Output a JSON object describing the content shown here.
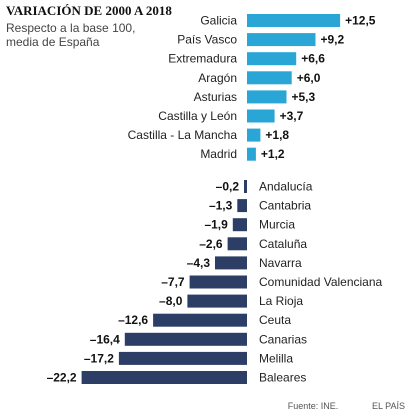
{
  "chart_data": {
    "type": "bar",
    "orientation": "horizontal",
    "title": "VARIACIÓN DE 2000 A 2018",
    "subtitle_lines": [
      "Respecto a la base 100,",
      "media de España"
    ],
    "categories": [
      "Galicia",
      "País Vasco",
      "Extremadura",
      "Aragón",
      "Asturias",
      "Castilla y León",
      "Castilla - La Mancha",
      "Madrid",
      "Andalucía",
      "Cantabria",
      "Murcia",
      "Cataluña",
      "Navarra",
      "Comunidad Valenciana",
      "La Rioja",
      "Ceuta",
      "Canarias",
      "Melilla",
      "Baleares"
    ],
    "values": [
      12.5,
      9.2,
      6.6,
      6.0,
      5.3,
      3.7,
      1.8,
      1.2,
      -0.2,
      -1.3,
      -1.9,
      -2.6,
      -4.3,
      -7.7,
      -8.0,
      -12.6,
      -16.4,
      -17.2,
      -22.2
    ],
    "value_labels": [
      "+12,5",
      "+9,2",
      "+6,6",
      "+6,0",
      "+5,3",
      "+3,7",
      "+1,8",
      "+1,2",
      "–0,2",
      "–1,3",
      "–1,9",
      "–2,6",
      "–4,3",
      "–7,7",
      "–8,0",
      "–12,6",
      "–16,4",
      "–17,2",
      "–22,2"
    ],
    "colors": {
      "positive": "#2aa6d6",
      "negative": "#2c3e66"
    },
    "grid": false
  },
  "footer": {
    "source": "Fuente: INE.",
    "publisher": "EL PAÍS"
  }
}
